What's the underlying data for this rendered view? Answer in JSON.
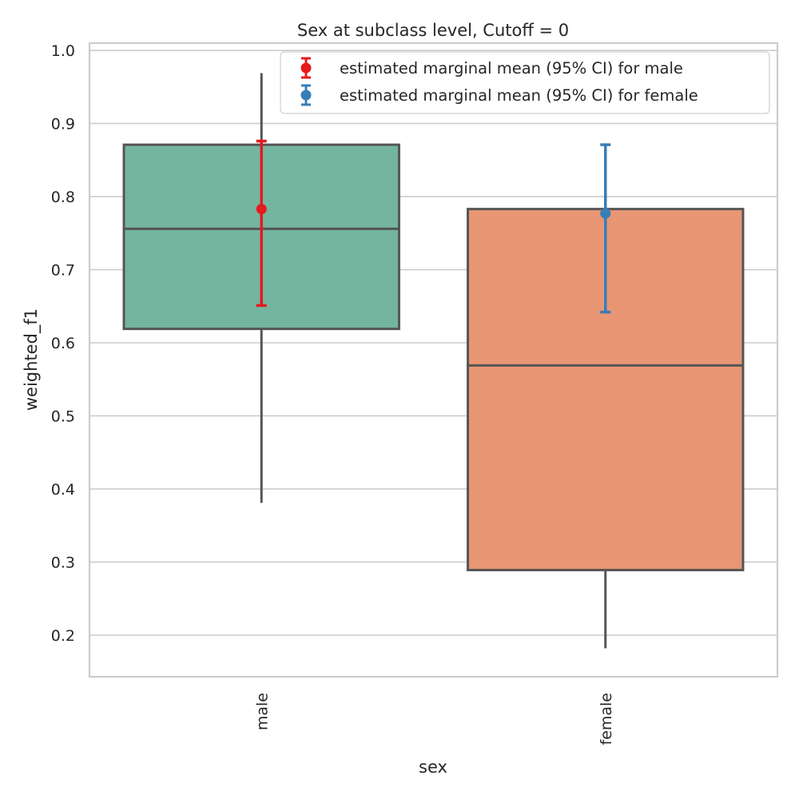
{
  "chart_data": {
    "type": "box",
    "title": "Sex at subclass level, Cutoff = 0",
    "xlabel": "sex",
    "ylabel": "weighted_f1",
    "ylim": [
      0.143,
      1.01
    ],
    "yticks": [
      0.2,
      0.3,
      0.4,
      0.5,
      0.6,
      0.7,
      0.8,
      0.9,
      1.0
    ],
    "grid": true,
    "legend_placement": "top-right",
    "categories": [
      "male",
      "female"
    ],
    "boxes": [
      {
        "category": "male",
        "whisker_low": 0.381,
        "q1": 0.619,
        "median": 0.756,
        "q3": 0.871,
        "whisker_high": 0.969,
        "color": "#74b59f"
      },
      {
        "category": "female",
        "whisker_low": 0.182,
        "q1": 0.289,
        "median": 0.569,
        "q3": 0.783,
        "whisker_high": 0.808,
        "color": "#e89674"
      }
    ],
    "series": [
      {
        "name": "estimated marginal mean (95% CI) for male",
        "category": "male",
        "mean": 0.783,
        "ci_low": 0.651,
        "ci_high": 0.876,
        "color": "#e41a1c"
      },
      {
        "name": "estimated marginal mean (95% CI) for female",
        "category": "female",
        "mean": 0.777,
        "ci_low": 0.642,
        "ci_high": 0.871,
        "color": "#377eb8"
      }
    ],
    "colors": {
      "box_edge": "#555555",
      "grid": "#cccccc",
      "frame": "#cccccc"
    }
  }
}
